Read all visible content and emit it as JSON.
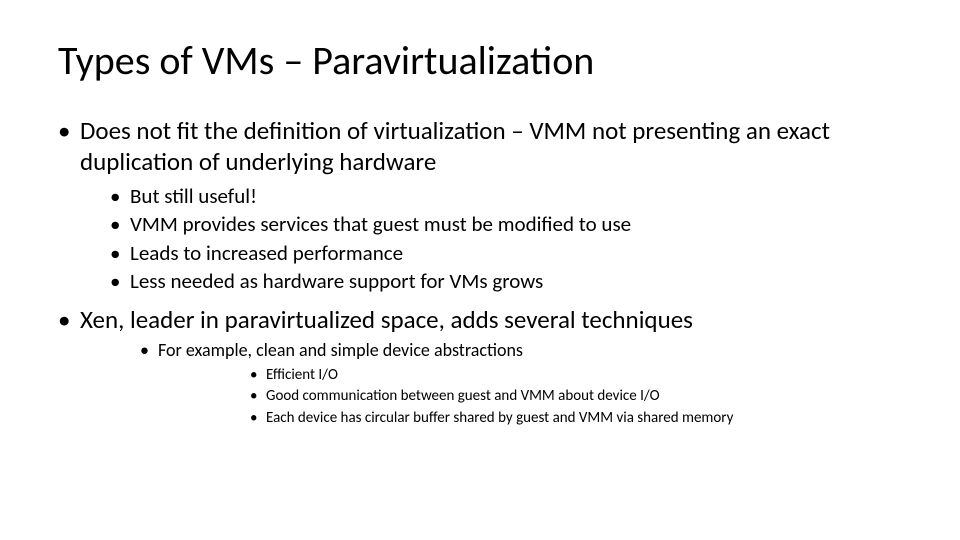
{
  "title": "Types of VMs – Paravirtualization",
  "colors": {
    "background": "#ffffff",
    "text": "#000000"
  },
  "typography": {
    "font_family": "Calibri",
    "title_fontsize_pt": 40,
    "lvl1_fontsize_pt": 25,
    "lvl2_fontsize_pt": 21,
    "lvl3_fontsize_pt": 18,
    "lvl4_fontsize_pt": 15
  },
  "bullets": {
    "b1": {
      "text": "Does not fit the definition of virtualization – VMM not presenting an exact duplication of underlying hardware",
      "sub": {
        "s1": "But still useful!",
        "s2": "VMM provides services that guest must be modified to use",
        "s3": "Leads to increased performance",
        "s4": "Less needed as hardware support for VMs grows"
      }
    },
    "b2": {
      "text": "Xen, leader in paravirtualized space, adds several techniques",
      "sub": {
        "s1": {
          "text": "For example, clean and simple device abstractions",
          "sub": {
            "d1": "Efficient I/O",
            "d2": "Good communication between guest and VMM about device I/O",
            "d3": "Each device has circular buffer shared by guest and VMM via shared memory"
          }
        }
      }
    }
  }
}
